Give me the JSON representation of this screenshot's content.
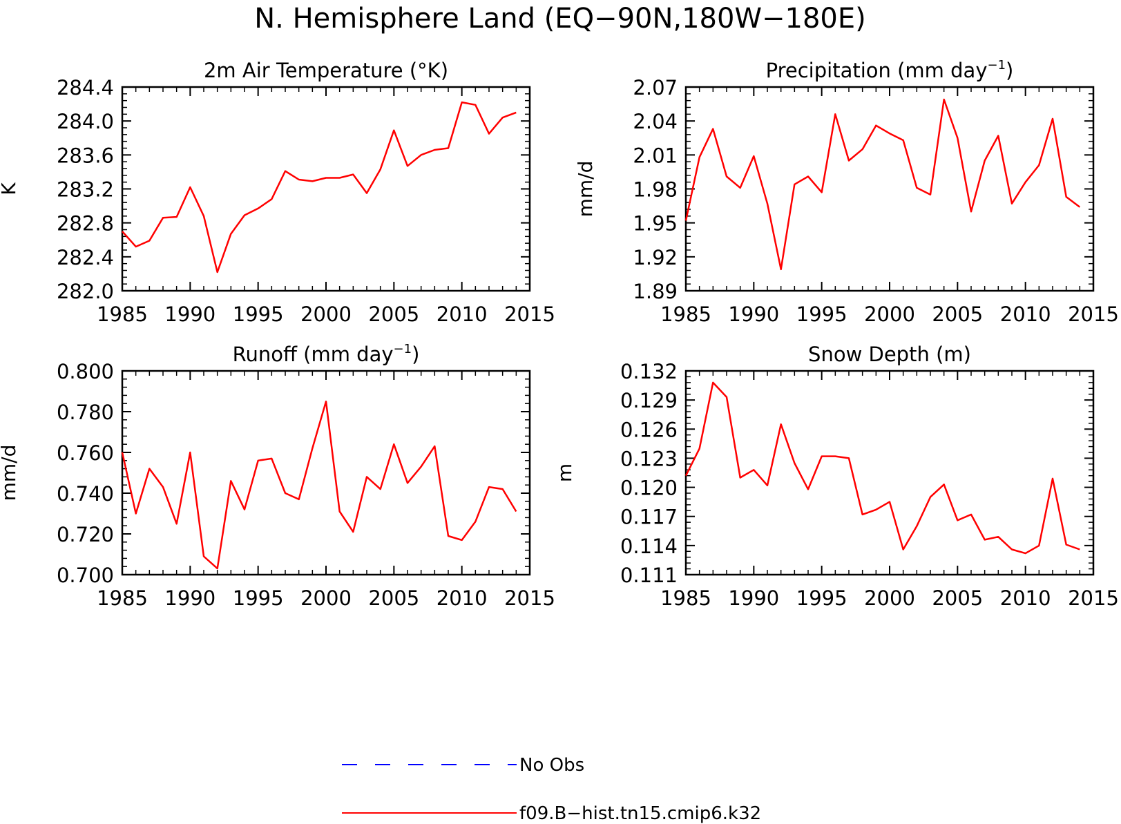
{
  "figure_title": "N. Hemisphere Land (EQ−90N,180W−180E)",
  "legend": {
    "entries": [
      {
        "label": "No Obs",
        "color": "#0000ff",
        "style": "dashed"
      },
      {
        "label": "f09.B−hist.tn15.cmip6.k32",
        "color": "#ff0000",
        "style": "solid"
      }
    ]
  },
  "chart_data": [
    {
      "type": "line",
      "title": "2m Air Temperature (°K)",
      "ylabel": "K",
      "xlim": [
        1985,
        2015
      ],
      "ylim": [
        282.0,
        284.4
      ],
      "x_ticks": [
        "1985",
        "1990",
        "1995",
        "2000",
        "2005",
        "2010",
        "2015"
      ],
      "y_ticks": [
        "282.0",
        "282.4",
        "282.8",
        "283.2",
        "283.6",
        "284.0",
        "284.4"
      ],
      "series": [
        {
          "name": "f09.B−hist.tn15.cmip6.k32",
          "color": "#ff0000",
          "x": [
            1985,
            1986,
            1987,
            1988,
            1989,
            1990,
            1991,
            1992,
            1993,
            1994,
            1995,
            1996,
            1997,
            1998,
            1999,
            2000,
            2001,
            2002,
            2003,
            2004,
            2005,
            2006,
            2007,
            2008,
            2009,
            2010,
            2011,
            2012,
            2013,
            2014
          ],
          "values": [
            282.7,
            282.52,
            282.59,
            282.86,
            282.87,
            283.22,
            282.88,
            282.22,
            282.67,
            282.89,
            282.97,
            283.08,
            283.41,
            283.31,
            283.29,
            283.33,
            283.33,
            283.37,
            283.15,
            283.43,
            283.89,
            283.47,
            283.6,
            283.66,
            283.68,
            284.22,
            284.19,
            283.85,
            284.04,
            284.1
          ]
        }
      ]
    },
    {
      "type": "line",
      "title": "Precipitation (mm day",
      "title_superscript": "−1",
      "title_suffix": ")",
      "ylabel": "mm/d",
      "xlim": [
        1985,
        2015
      ],
      "ylim": [
        1.89,
        2.07
      ],
      "x_ticks": [
        "1985",
        "1990",
        "1995",
        "2000",
        "2005",
        "2010",
        "2015"
      ],
      "y_ticks": [
        "1.89",
        "1.92",
        "1.95",
        "1.98",
        "2.01",
        "2.04",
        "2.07"
      ],
      "series": [
        {
          "name": "f09.B−hist.tn15.cmip6.k32",
          "color": "#ff0000",
          "x": [
            1985,
            1986,
            1987,
            1988,
            1989,
            1990,
            1991,
            1992,
            1993,
            1994,
            1995,
            1996,
            1997,
            1998,
            1999,
            2000,
            2001,
            2002,
            2003,
            2004,
            2005,
            2006,
            2007,
            2008,
            2009,
            2010,
            2011,
            2012,
            2013,
            2014
          ],
          "values": [
            1.952,
            2.008,
            2.033,
            1.991,
            1.981,
            2.009,
            1.967,
            1.909,
            1.984,
            1.991,
            1.977,
            2.046,
            2.005,
            2.015,
            2.036,
            2.029,
            2.023,
            1.981,
            1.975,
            2.059,
            2.025,
            1.96,
            2.005,
            2.027,
            1.967,
            1.986,
            2.001,
            2.042,
            1.973,
            1.964
          ]
        }
      ]
    },
    {
      "type": "line",
      "title": "Runoff (mm day",
      "title_superscript": "−1",
      "title_suffix": ")",
      "ylabel": "mm/d",
      "xlim": [
        1985,
        2015
      ],
      "ylim": [
        0.7,
        0.8
      ],
      "x_ticks": [
        "1985",
        "1990",
        "1995",
        "2000",
        "2005",
        "2010",
        "2015"
      ],
      "y_ticks": [
        "0.700",
        "0.720",
        "0.740",
        "0.760",
        "0.780",
        "0.800"
      ],
      "series": [
        {
          "name": "f09.B−hist.tn15.cmip6.k32",
          "color": "#ff0000",
          "x": [
            1985,
            1986,
            1987,
            1988,
            1989,
            1990,
            1991,
            1992,
            1993,
            1994,
            1995,
            1996,
            1997,
            1998,
            1999,
            2000,
            2001,
            2002,
            2003,
            2004,
            2005,
            2006,
            2007,
            2008,
            2009,
            2010,
            2011,
            2012,
            2013,
            2014
          ],
          "values": [
            0.76,
            0.73,
            0.752,
            0.743,
            0.725,
            0.76,
            0.709,
            0.703,
            0.746,
            0.732,
            0.756,
            0.757,
            0.74,
            0.737,
            0.762,
            0.785,
            0.731,
            0.721,
            0.748,
            0.742,
            0.764,
            0.745,
            0.753,
            0.763,
            0.719,
            0.717,
            0.726,
            0.743,
            0.742,
            0.731
          ]
        }
      ]
    },
    {
      "type": "line",
      "title": "Snow Depth (m)",
      "ylabel": "m",
      "xlim": [
        1985,
        2015
      ],
      "ylim": [
        0.111,
        0.132
      ],
      "x_ticks": [
        "1985",
        "1990",
        "1995",
        "2000",
        "2005",
        "2010",
        "2015"
      ],
      "y_ticks": [
        "0.111",
        "0.114",
        "0.117",
        "0.120",
        "0.123",
        "0.126",
        "0.129",
        "0.132"
      ],
      "series": [
        {
          "name": "f09.B−hist.tn15.cmip6.k32",
          "color": "#ff0000",
          "x": [
            1985,
            1986,
            1987,
            1988,
            1989,
            1990,
            1991,
            1992,
            1993,
            1994,
            1995,
            1996,
            1997,
            1998,
            1999,
            2000,
            2001,
            2002,
            2003,
            2004,
            2005,
            2006,
            2007,
            2008,
            2009,
            2010,
            2011,
            2012,
            2013,
            2014
          ],
          "values": [
            0.1212,
            0.124,
            0.1308,
            0.1293,
            0.121,
            0.1218,
            0.1202,
            0.1265,
            0.1225,
            0.1198,
            0.1232,
            0.1232,
            0.123,
            0.1172,
            0.1177,
            0.1185,
            0.1136,
            0.116,
            0.119,
            0.1203,
            0.1166,
            0.1172,
            0.1146,
            0.1149,
            0.1136,
            0.1132,
            0.114,
            0.1209,
            0.1141,
            0.1136
          ]
        }
      ]
    }
  ]
}
